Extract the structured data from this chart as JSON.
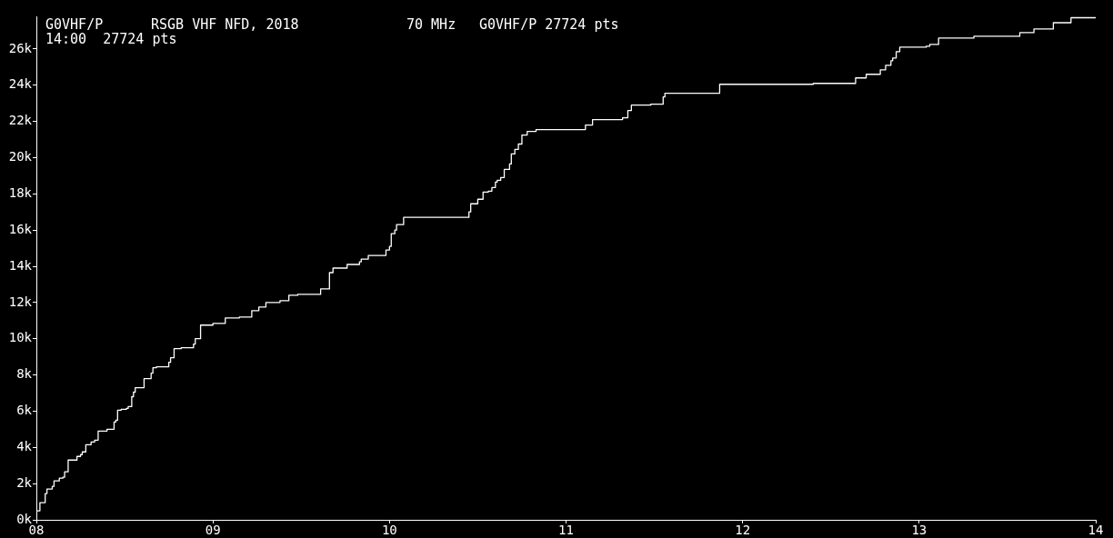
{
  "chart_data": {
    "type": "step",
    "title": "RSGB VHF NFD, 2018",
    "annotations": [
      "G0VHF/P",
      "70 MHz",
      "G0VHF/P 27724 pts",
      "14:00  27724 pts"
    ],
    "x": [
      8.0,
      8.02,
      8.05,
      8.06,
      8.09,
      8.1,
      8.13,
      8.15,
      8.16,
      8.18,
      8.23,
      8.25,
      8.26,
      8.28,
      8.31,
      8.33,
      8.35,
      8.4,
      8.44,
      8.45,
      8.46,
      8.48,
      8.51,
      8.52,
      8.54,
      8.55,
      8.56,
      8.61,
      8.65,
      8.66,
      8.68,
      8.75,
      8.76,
      8.78,
      8.82,
      8.89,
      8.9,
      8.93,
      9.0,
      9.07,
      9.15,
      9.22,
      9.26,
      9.3,
      9.38,
      9.43,
      9.48,
      9.61,
      9.66,
      9.68,
      9.76,
      9.83,
      9.84,
      9.88,
      9.98,
      10.0,
      10.01,
      10.03,
      10.04,
      10.08,
      10.45,
      10.46,
      10.5,
      10.53,
      10.56,
      10.58,
      10.6,
      10.61,
      10.63,
      10.65,
      10.68,
      10.69,
      10.71,
      10.73,
      10.75,
      10.78,
      10.83,
      11.11,
      11.15,
      11.32,
      11.35,
      11.37,
      11.48,
      11.55,
      11.56,
      11.87,
      12.4,
      12.64,
      12.7,
      12.78,
      12.81,
      12.84,
      12.85,
      12.87,
      12.89,
      13.04,
      13.06,
      13.11,
      13.31,
      13.57,
      13.65,
      13.76,
      13.86,
      14.0
    ],
    "series": [
      {
        "color": "#ffffff",
        "values": [
          500,
          950,
          1450,
          1700,
          1850,
          2150,
          2300,
          2350,
          2650,
          3300,
          3500,
          3600,
          3750,
          4150,
          4300,
          4400,
          4900,
          5000,
          5400,
          5500,
          6050,
          6100,
          6150,
          6250,
          6800,
          7050,
          7300,
          7800,
          8100,
          8400,
          8450,
          8700,
          8950,
          9450,
          9500,
          9700,
          10000,
          10750,
          10850,
          11150,
          11200,
          11550,
          11750,
          12000,
          12100,
          12400,
          12450,
          12750,
          13650,
          13900,
          14100,
          14250,
          14400,
          14600,
          14900,
          15100,
          15800,
          16000,
          16300,
          16700,
          17000,
          17450,
          17700,
          18100,
          18150,
          18350,
          18650,
          18750,
          18900,
          19350,
          19650,
          20200,
          20450,
          20750,
          21250,
          21450,
          21550,
          21800,
          22100,
          22200,
          22600,
          22900,
          22950,
          23350,
          23550,
          24050,
          24100,
          24400,
          24600,
          24850,
          25100,
          25350,
          25500,
          25850,
          26100,
          26150,
          26250,
          26600,
          26700,
          26900,
          27100,
          27450,
          27724,
          27724
        ]
      }
    ],
    "xlim": [
      8,
      14
    ],
    "xticks": [
      {
        "value": 8,
        "label": "08"
      },
      {
        "value": 9,
        "label": "09"
      },
      {
        "value": 10,
        "label": "10"
      },
      {
        "value": 11,
        "label": "11"
      },
      {
        "value": 12,
        "label": "12"
      },
      {
        "value": 13,
        "label": "13"
      },
      {
        "value": 14,
        "label": "14"
      }
    ],
    "ylim": [
      0,
      27800
    ],
    "yticks": [
      {
        "value": 0,
        "label": "0k"
      },
      {
        "value": 2000,
        "label": "2k"
      },
      {
        "value": 4000,
        "label": "4k"
      },
      {
        "value": 6000,
        "label": "6k"
      },
      {
        "value": 8000,
        "label": "8k"
      },
      {
        "value": 10000,
        "label": "10k"
      },
      {
        "value": 12000,
        "label": "12k"
      },
      {
        "value": 14000,
        "label": "14k"
      },
      {
        "value": 16000,
        "label": "16k"
      },
      {
        "value": 18000,
        "label": "18k"
      },
      {
        "value": 20000,
        "label": "20k"
      },
      {
        "value": 22000,
        "label": "22k"
      },
      {
        "value": 24000,
        "label": "24k"
      },
      {
        "value": 26000,
        "label": "26k"
      }
    ],
    "marker": "none"
  }
}
